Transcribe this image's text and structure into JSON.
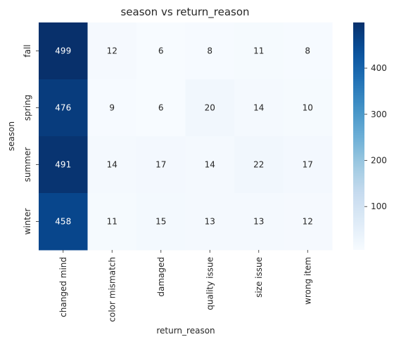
{
  "chart_data": {
    "type": "heatmap",
    "title": "season vs return_reason",
    "xlabel": "return_reason",
    "ylabel": "season",
    "x_categories": [
      "changed mind",
      "color mismatch",
      "damaged",
      "quality issue",
      "size issue",
      "wrong item"
    ],
    "y_categories": [
      "fall",
      "spring",
      "summer",
      "winter"
    ],
    "values": [
      [
        499,
        12,
        6,
        8,
        11,
        8
      ],
      [
        476,
        9,
        6,
        20,
        14,
        10
      ],
      [
        491,
        14,
        17,
        14,
        22,
        17
      ],
      [
        458,
        11,
        15,
        13,
        13,
        12
      ]
    ],
    "colormap": "Blues",
    "colorbar": {
      "range": [
        6,
        499
      ],
      "ticks": [
        100,
        200,
        300,
        400
      ]
    },
    "grid": false,
    "annotations": true
  }
}
